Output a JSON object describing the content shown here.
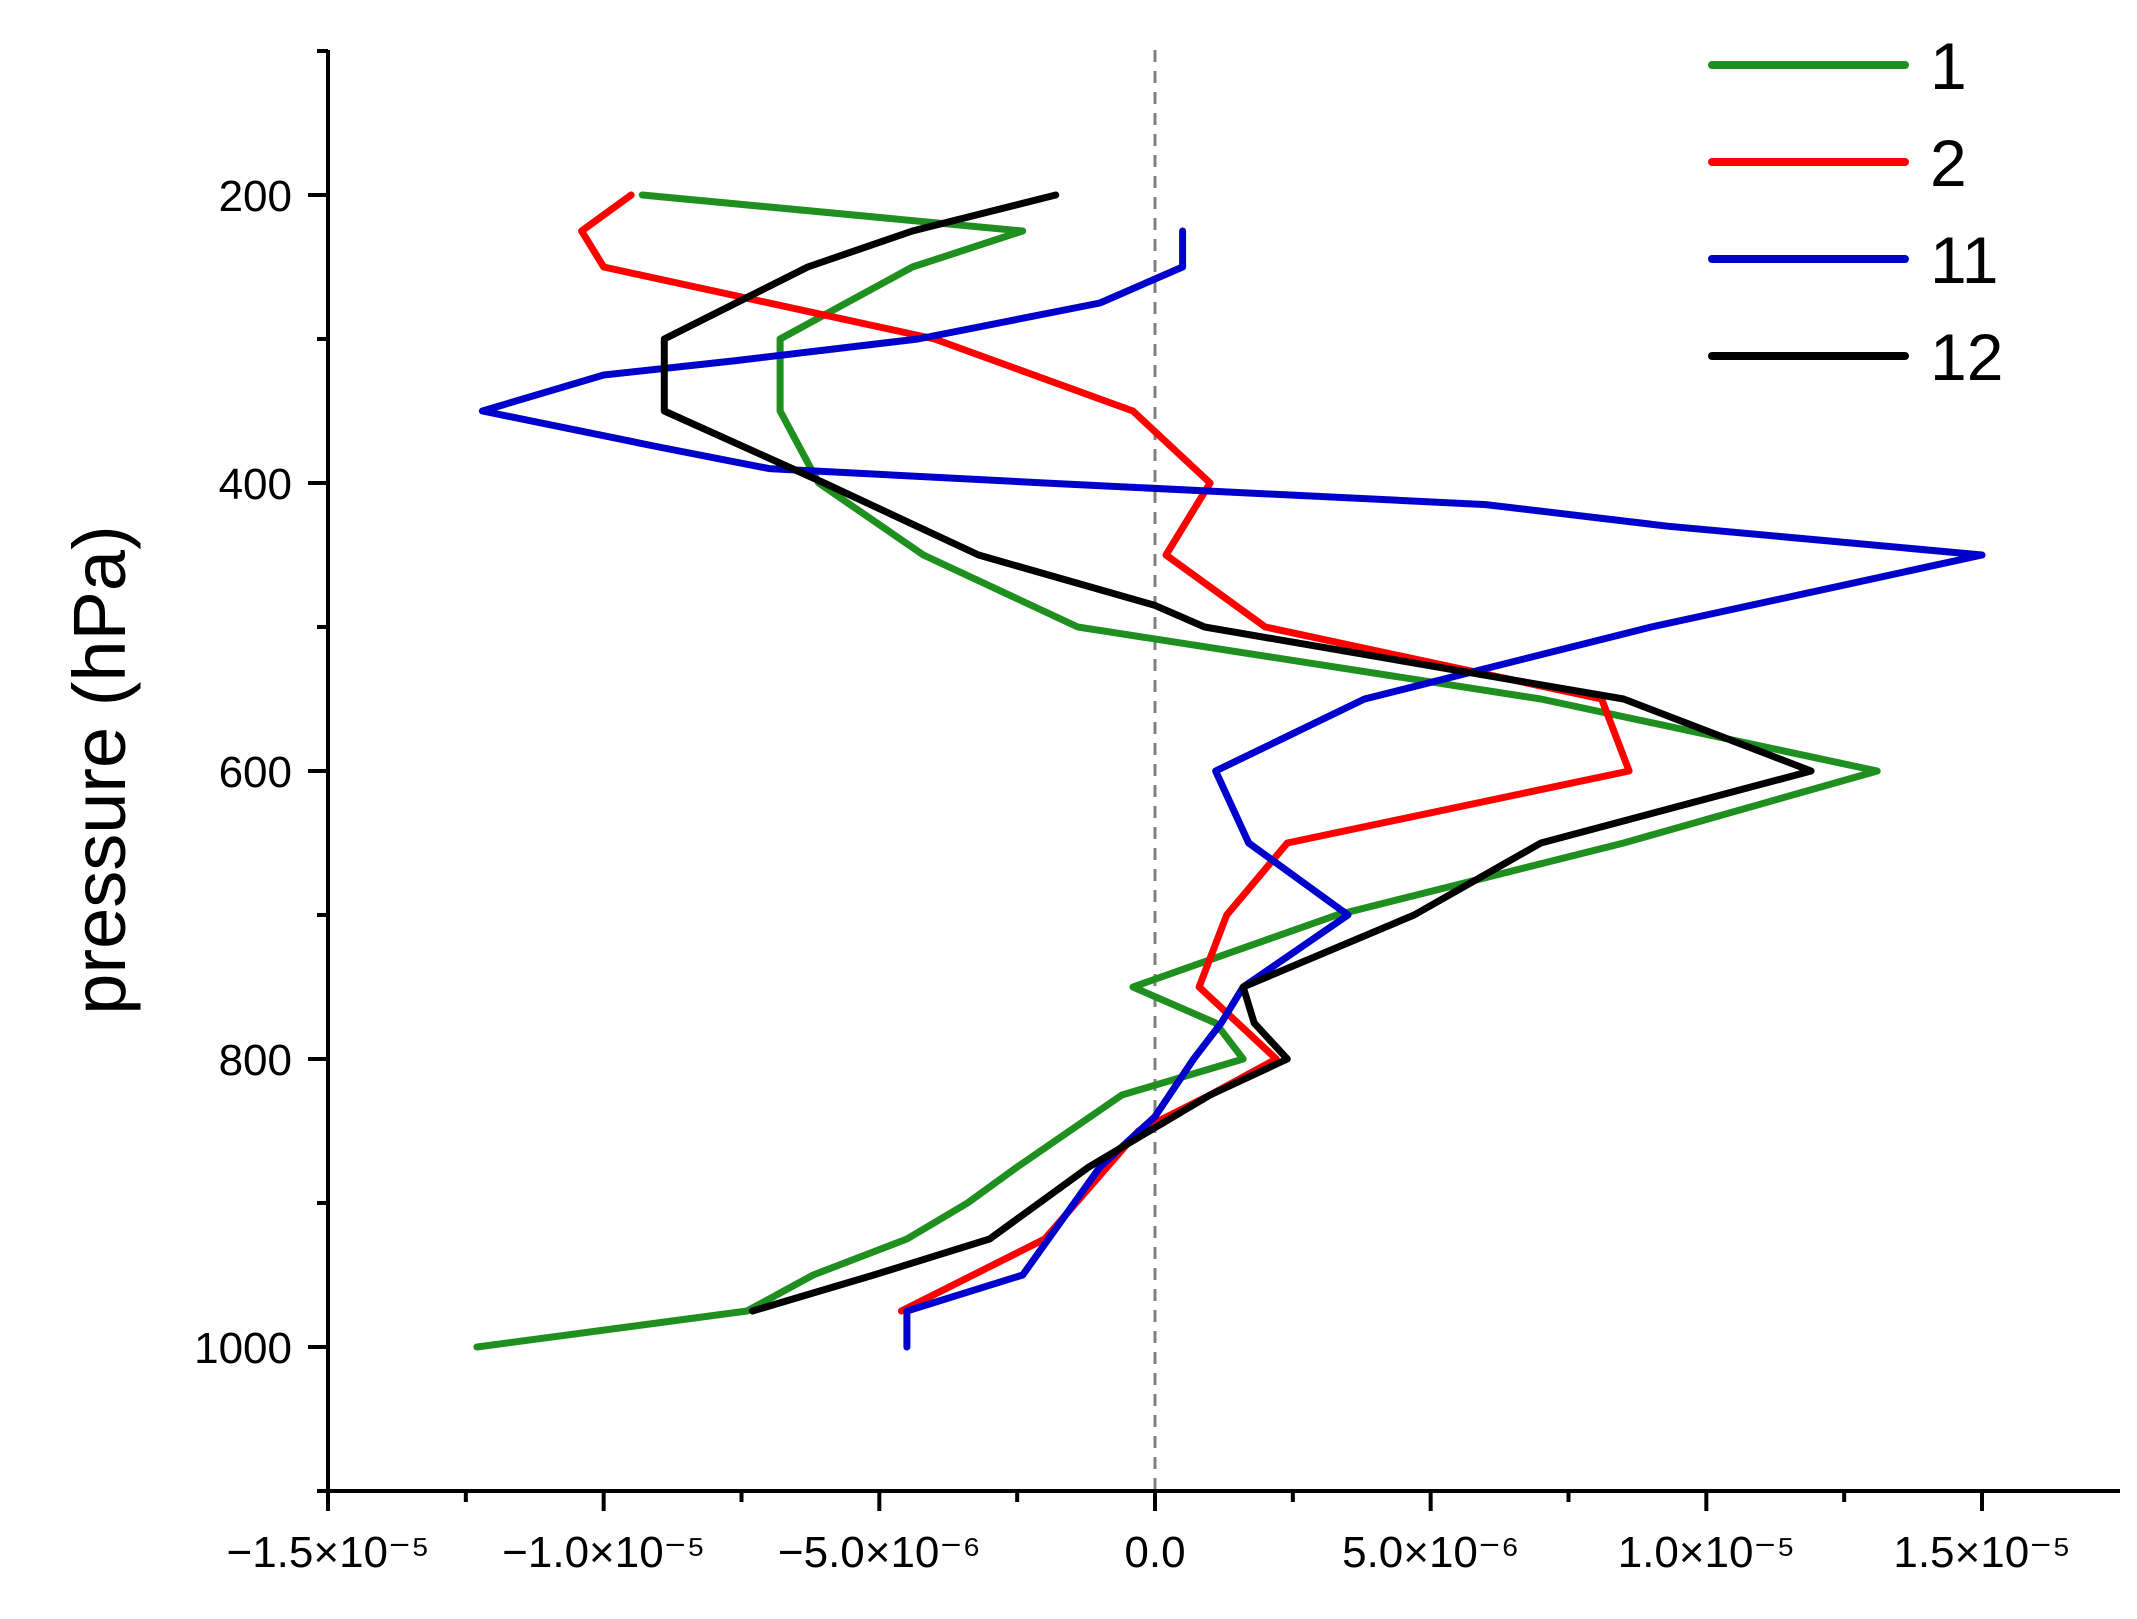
{
  "chart_data": {
    "type": "line",
    "orientation": "vertical-profile",
    "xlabel": "",
    "ylabel": "pressure (hPa)",
    "xlim": [
      -1.5e-05,
      1.5e-05
    ],
    "ylim": [
      1100,
      100
    ],
    "y_inverted": true,
    "x_ticks": [
      {
        "value": -1.5e-05,
        "label": "−1.5×10⁻⁵"
      },
      {
        "value": -1e-05,
        "label": "−1.0×10⁻⁵"
      },
      {
        "value": -5e-06,
        "label": "−5.0×10⁻⁶"
      },
      {
        "value": 0,
        "label": "0.0"
      },
      {
        "value": 5e-06,
        "label": "5.0×10⁻⁶"
      },
      {
        "value": 1e-05,
        "label": "1.0×10⁻⁵"
      },
      {
        "value": 1.5e-05,
        "label": "1.5×10⁻⁵"
      }
    ],
    "x_minor_ticks": [
      -1.25e-05,
      -7.5e-06,
      -2.5e-06,
      2.5e-06,
      7.5e-06,
      1.25e-05
    ],
    "y_ticks": [
      {
        "value": 200,
        "label": "200"
      },
      {
        "value": 400,
        "label": "400"
      },
      {
        "value": 600,
        "label": "600"
      },
      {
        "value": 800,
        "label": "800"
      },
      {
        "value": 1000,
        "label": "1000"
      }
    ],
    "y_minor_ticks": [
      100,
      300,
      500,
      700,
      900,
      1100
    ],
    "reference_line": {
      "x": 0,
      "style": "dashed",
      "color": "#808080"
    },
    "legend": {
      "position": "top-right"
    },
    "series": [
      {
        "name": "1",
        "color": "#1f8f1f",
        "points": [
          [
            -9.3e-06,
            200
          ],
          [
            -2.4e-06,
            225
          ],
          [
            -4.4e-06,
            250
          ],
          [
            -6.8e-06,
            300
          ],
          [
            -6.8e-06,
            350
          ],
          [
            -6.1e-06,
            400
          ],
          [
            -4.2e-06,
            450
          ],
          [
            -1.4e-06,
            500
          ],
          [
            7e-06,
            550
          ],
          [
            1.31e-05,
            600
          ],
          [
            8.5e-06,
            650
          ],
          [
            3.3e-06,
            700
          ],
          [
            -4e-07,
            750
          ],
          [
            1.1e-06,
            775
          ],
          [
            1.6e-06,
            800
          ],
          [
            -6e-07,
            825
          ],
          [
            -2.5e-06,
            875
          ],
          [
            -3.4e-06,
            900
          ],
          [
            -4.5e-06,
            925
          ],
          [
            -6.2e-06,
            950
          ],
          [
            -7.4e-06,
            975
          ],
          [
            -1.23e-05,
            1000
          ]
        ]
      },
      {
        "name": "2",
        "color": "#ff0000",
        "points": [
          [
            -9.5e-06,
            200
          ],
          [
            -1.04e-05,
            225
          ],
          [
            -1e-05,
            250
          ],
          [
            -4e-06,
            300
          ],
          [
            -4e-07,
            350
          ],
          [
            1e-06,
            400
          ],
          [
            2e-07,
            450
          ],
          [
            2e-06,
            500
          ],
          [
            8.1e-06,
            550
          ],
          [
            8.6e-06,
            600
          ],
          [
            2.4e-06,
            650
          ],
          [
            1.3e-06,
            700
          ],
          [
            8e-07,
            750
          ],
          [
            2.2e-06,
            800
          ],
          [
            1e-06,
            825
          ],
          [
            -3e-07,
            850
          ],
          [
            -2e-06,
            925
          ],
          [
            -4.6e-06,
            975
          ]
        ]
      },
      {
        "name": "11",
        "color": "#0000cc",
        "points": [
          [
            5e-07,
            225
          ],
          [
            5e-07,
            250
          ],
          [
            -1e-06,
            275
          ],
          [
            -4.3e-06,
            300
          ],
          [
            -7.6e-06,
            315
          ],
          [
            -1e-05,
            325
          ],
          [
            -1.22e-05,
            350
          ],
          [
            -9e-06,
            375
          ],
          [
            -7e-06,
            390
          ],
          [
            -2e-06,
            400
          ],
          [
            6e-06,
            415
          ],
          [
            9.3e-06,
            430
          ],
          [
            1.5e-05,
            450
          ],
          [
            9e-06,
            500
          ],
          [
            3.8e-06,
            550
          ],
          [
            1.1e-06,
            600
          ],
          [
            1.7e-06,
            650
          ],
          [
            3.5e-06,
            700
          ],
          [
            1.6e-06,
            750
          ],
          [
            1.2e-06,
            775
          ],
          [
            7e-07,
            800
          ],
          [
            0,
            840
          ],
          [
            -1e-06,
            875
          ],
          [
            -2.4e-06,
            950
          ],
          [
            -4.5e-06,
            975
          ],
          [
            -4.5e-06,
            1000
          ]
        ]
      },
      {
        "name": "12",
        "color": "#000000",
        "points": [
          [
            -1.8e-06,
            200
          ],
          [
            -4.4e-06,
            225
          ],
          [
            -6.3e-06,
            250
          ],
          [
            -8.9e-06,
            300
          ],
          [
            -8.9e-06,
            350
          ],
          [
            -6e-06,
            400
          ],
          [
            -3.2e-06,
            450
          ],
          [
            0,
            485
          ],
          [
            9e-07,
            500
          ],
          [
            8.5e-06,
            550
          ],
          [
            1.19e-05,
            600
          ],
          [
            7e-06,
            650
          ],
          [
            4.7e-06,
            700
          ],
          [
            1.6e-06,
            750
          ],
          [
            1.8e-06,
            775
          ],
          [
            2.4e-06,
            800
          ],
          [
            1e-06,
            825
          ],
          [
            -1.2e-06,
            875
          ],
          [
            -3e-06,
            925
          ],
          [
            -5.1e-06,
            950
          ],
          [
            -7.3e-06,
            975
          ]
        ]
      }
    ]
  }
}
